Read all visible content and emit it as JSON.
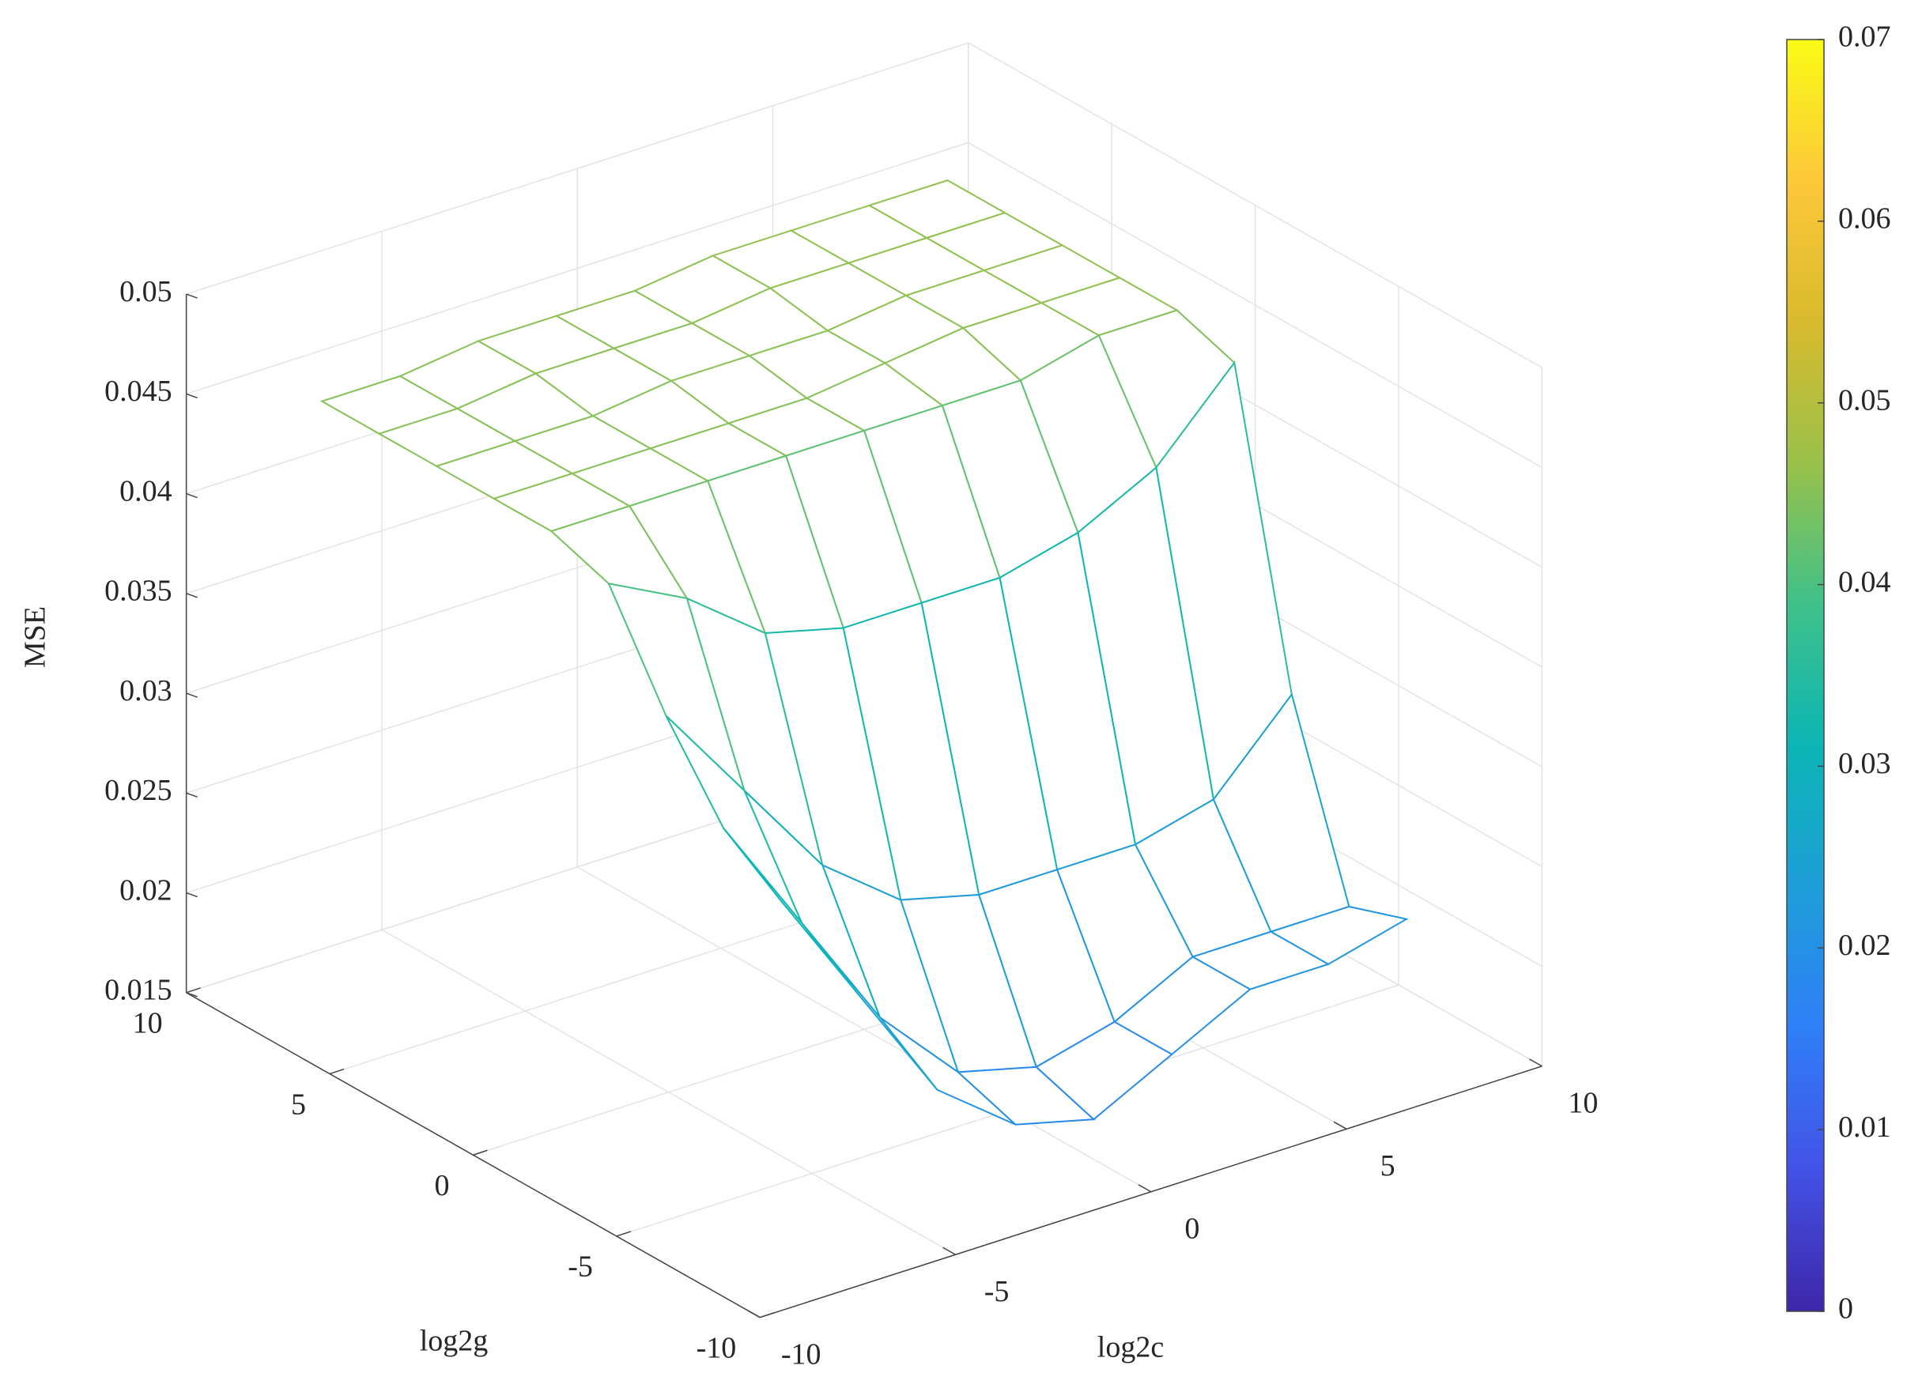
{
  "chart_data": {
    "type": "mesh",
    "x_label": "log2c",
    "y_label": "log2g",
    "z_label": "MSE",
    "x": [
      -8,
      -6,
      -4,
      -2,
      0,
      2,
      4,
      6,
      8
    ],
    "y": [
      -8,
      -6,
      -4,
      -2,
      0,
      2,
      4,
      6,
      8
    ],
    "z": [
      [
        0.033,
        0.027,
        0.021,
        0.018,
        0.017,
        0.019,
        0.021,
        0.021,
        0.022
      ],
      [
        0.035,
        0.029,
        0.023,
        0.019,
        0.018,
        0.019,
        0.021,
        0.021,
        0.021
      ],
      [
        0.039,
        0.034,
        0.029,
        0.026,
        0.025,
        0.025,
        0.025,
        0.026,
        0.03
      ],
      [
        0.044,
        0.042,
        0.039,
        0.038,
        0.038,
        0.038,
        0.039,
        0.041,
        0.045
      ],
      [
        0.045,
        0.045,
        0.045,
        0.045,
        0.045,
        0.045,
        0.045,
        0.046,
        0.046
      ],
      [
        0.045,
        0.045,
        0.045,
        0.045,
        0.045,
        0.0455,
        0.046,
        0.046,
        0.046
      ],
      [
        0.045,
        0.045,
        0.045,
        0.0455,
        0.0455,
        0.0455,
        0.046,
        0.046,
        0.046
      ],
      [
        0.045,
        0.045,
        0.0455,
        0.0455,
        0.0455,
        0.046,
        0.046,
        0.046,
        0.046
      ],
      [
        0.045,
        0.045,
        0.0455,
        0.0455,
        0.0455,
        0.046,
        0.046,
        0.046,
        0.046
      ]
    ],
    "xlim": [
      -10,
      10
    ],
    "xticks": [
      -10,
      -5,
      0,
      5,
      10
    ],
    "ylim": [
      -10,
      10
    ],
    "yticks": [
      -10,
      -5,
      0,
      5,
      10
    ],
    "zlim": [
      0.015,
      0.05
    ],
    "zticks": [
      0.015,
      0.02,
      0.025,
      0.03,
      0.035,
      0.04,
      0.045,
      0.05
    ],
    "grid": true,
    "colormap": [
      "#3e26a8",
      "#4352e6",
      "#2f7ff8",
      "#1e9ed8",
      "#0cb5b5",
      "#3fc18a",
      "#99c14a",
      "#d9ba2d",
      "#fcc83a",
      "#f9fb15"
    ],
    "colorbar": {
      "lim": [
        0,
        0.07
      ],
      "ticks": [
        0,
        0.01,
        0.02,
        0.03,
        0.04,
        0.05,
        0.06,
        0.07
      ]
    }
  }
}
